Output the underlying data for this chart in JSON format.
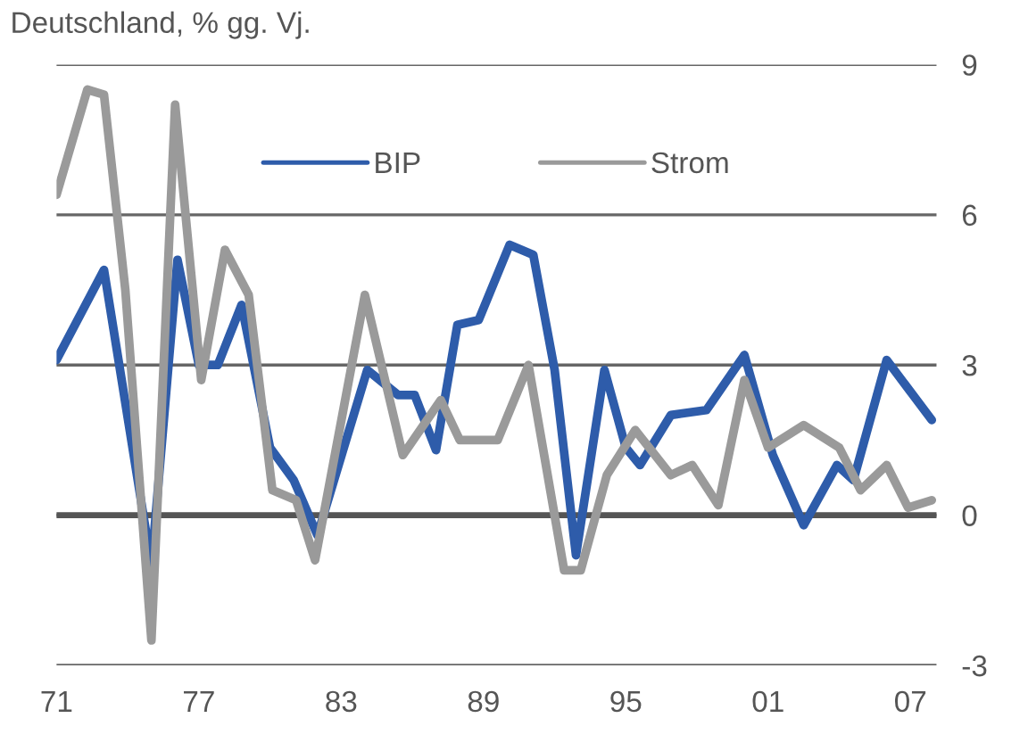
{
  "chart_data": {
    "type": "line",
    "title": "Deutschland, % gg. Vj.",
    "series": [
      {
        "name": "BIP",
        "color": "#2e5caa",
        "x": [
          1971,
          1973,
          1975,
          1976.1,
          1977,
          1977.8,
          1978.8,
          1980,
          1981,
          1982,
          1984.1,
          1985.4,
          1986.1,
          1987,
          1987.9,
          1988.8,
          1990.1,
          1991.1,
          1992,
          1992.9,
          1994.1,
          1995,
          1995.6,
          1996.9,
          1998.4,
          2000,
          2001.2,
          2002.5,
          2003.9,
          2004.6,
          2006,
          2007.9
        ],
        "values": [
          3.1,
          4.9,
          -1.0,
          5.1,
          3.0,
          3.0,
          4.2,
          1.35,
          0.7,
          -0.4,
          2.9,
          2.4,
          2.4,
          1.3,
          3.8,
          3.9,
          5.4,
          5.2,
          2.9,
          -0.8,
          2.9,
          1.35,
          1.0,
          2.0,
          2.1,
          3.2,
          1.2,
          -0.2,
          1.0,
          0.7,
          3.1,
          1.9
        ]
      },
      {
        "name": "Strom",
        "color": "#9a9a9a",
        "x": [
          1971,
          1972.3,
          1973,
          1973.9,
          1975,
          1976,
          1977.1,
          1978.1,
          1979.1,
          1980.1,
          1981.1,
          1981.9,
          1984,
          1985.6,
          1987.2,
          1988,
          1989.6,
          1990.9,
          1992.4,
          1993.1,
          1994.2,
          1995.4,
          1996.9,
          1997.8,
          1998.9,
          2000,
          2001,
          2002.5,
          2004,
          2004.9,
          2006,
          2006.9,
          2007.9
        ],
        "values": [
          6.4,
          8.5,
          8.4,
          4.5,
          -2.5,
          8.2,
          2.7,
          5.3,
          4.4,
          0.5,
          0.3,
          -0.9,
          4.4,
          1.2,
          2.3,
          1.5,
          1.5,
          3.0,
          -1.1,
          -1.1,
          0.8,
          1.7,
          0.8,
          1.0,
          0.2,
          2.7,
          1.35,
          1.8,
          1.35,
          0.5,
          1.0,
          0.15,
          0.3
        ]
      }
    ],
    "xlim": [
      1971,
      2008.1
    ],
    "xticks": [
      {
        "value": 1971,
        "label": "71"
      },
      {
        "value": 1977,
        "label": "77"
      },
      {
        "value": 1983,
        "label": "83"
      },
      {
        "value": 1989,
        "label": "89"
      },
      {
        "value": 1995,
        "label": "95"
      },
      {
        "value": 2001,
        "label": "01"
      },
      {
        "value": 2007,
        "label": "07"
      }
    ],
    "ylim": [
      -3,
      9
    ],
    "yticks": [
      -3,
      0,
      3,
      6,
      9
    ],
    "ref_lines": [
      {
        "axis": "y",
        "value": 0,
        "color": "#555555"
      }
    ],
    "grid": "y",
    "legend": "top"
  }
}
